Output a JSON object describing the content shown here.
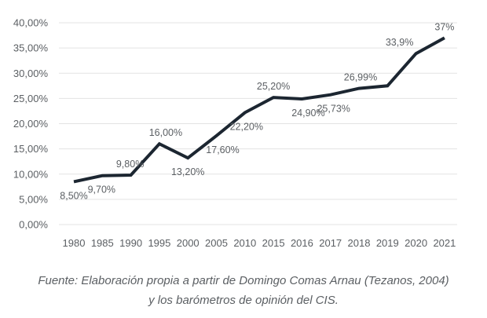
{
  "chart_data": {
    "type": "line",
    "categories": [
      "1980",
      "1985",
      "1990",
      "1995",
      "2000",
      "2005",
      "2010",
      "2015",
      "2016",
      "2017",
      "2018",
      "2019",
      "2020",
      "2021"
    ],
    "series": [
      {
        "values": [
          8.5,
          9.7,
          9.8,
          16.0,
          13.2,
          17.6,
          22.2,
          25.2,
          24.9,
          25.73,
          26.99,
          27.5,
          33.9,
          37.0
        ],
        "data_labels": [
          "8,50%",
          "9,70%",
          "9,80%",
          "16,00%",
          "13,20%",
          "17,60%",
          "22,20%",
          "25,20%",
          "24,90%",
          "25,73%",
          "26,99%",
          "",
          "33,9%",
          "37%"
        ]
      }
    ],
    "y_ticks": [
      "0,00%",
      "5,00%",
      "10,00%",
      "15,00%",
      "20,00%",
      "25,00%",
      "30,00%",
      "35,00%",
      "40,00%"
    ],
    "ylim": [
      0,
      40
    ],
    "grid": true,
    "line_color": "#1c2631",
    "grid_color": "#e3e3e3",
    "text_color": "#5b5f63"
  },
  "caption": {
    "line1": "Fuente: Elaboración propia a partir de Domingo Comas Arnau (Tezanos, 2004)",
    "line2": "y los barómetros de opinión del CIS."
  }
}
